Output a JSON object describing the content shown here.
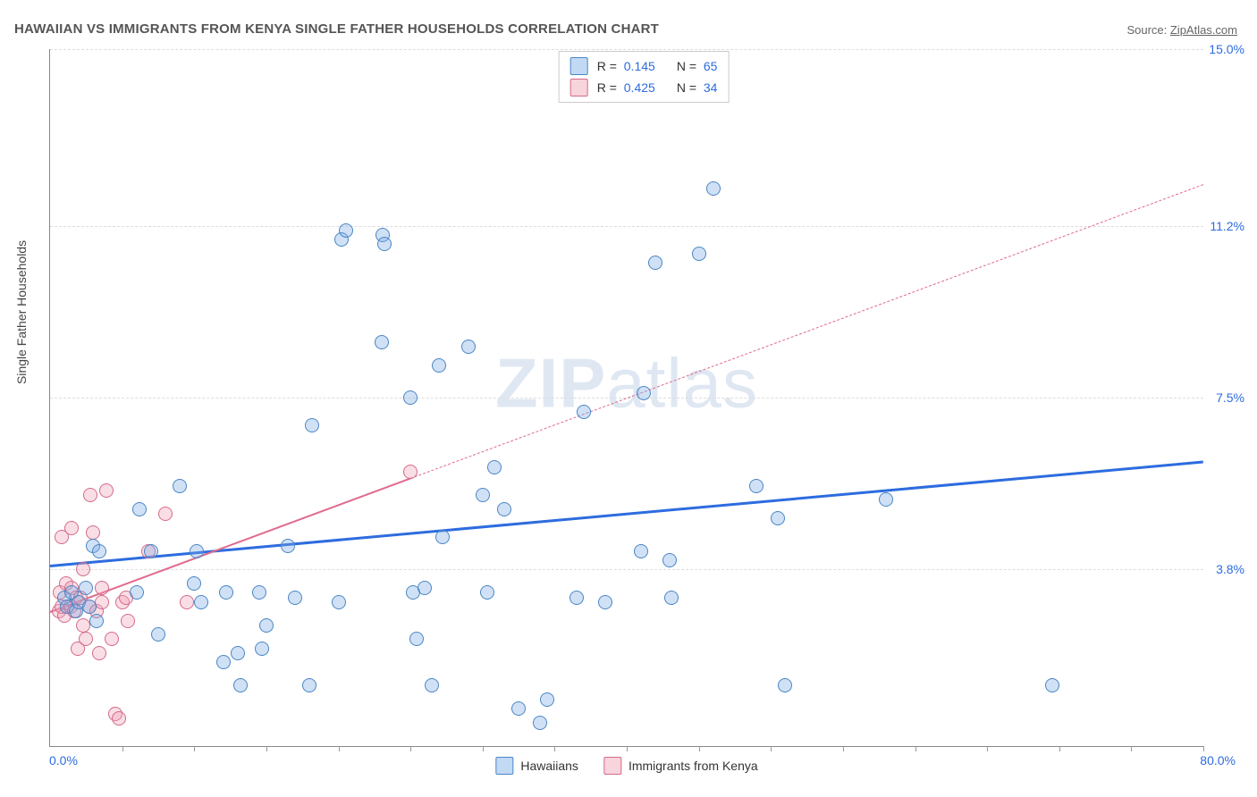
{
  "title": "HAWAIIAN VS IMMIGRANTS FROM KENYA SINGLE FATHER HOUSEHOLDS CORRELATION CHART",
  "source_prefix": "Source: ",
  "source_link": "ZipAtlas.com",
  "y_axis_label": "Single Father Households",
  "watermark_zip": "ZIP",
  "watermark_atlas": "atlas",
  "chart": {
    "type": "scatter",
    "x_range": [
      0,
      80
    ],
    "y_range": [
      0,
      15
    ],
    "y_ticks": [
      3.8,
      7.5,
      11.2,
      15.0
    ],
    "y_tick_labels": [
      "3.8%",
      "7.5%",
      "11.2%",
      "15.0%"
    ],
    "x_minor_ticks_count": 16,
    "x_left_label": "0.0%",
    "x_right_label": "80.0%",
    "background_color": "#ffffff",
    "grid_color": "#dddddd",
    "series": {
      "hawaiians": {
        "label": "Hawaiians",
        "color_fill": "rgba(120,170,230,0.35)",
        "color_border": "#4a86c4",
        "marker_radius_px": 7,
        "regression": {
          "slope": 0.028,
          "intercept": 3.9,
          "solid_until_x": 80,
          "line_color": "#2d6cdf",
          "line_width": 3
        },
        "points": [
          [
            1.0,
            3.2
          ],
          [
            1.2,
            3.0
          ],
          [
            1.5,
            3.3
          ],
          [
            1.8,
            2.9
          ],
          [
            2.0,
            3.1
          ],
          [
            2.5,
            3.4
          ],
          [
            2.7,
            3.0
          ],
          [
            3.0,
            4.3
          ],
          [
            3.2,
            2.7
          ],
          [
            3.4,
            4.2
          ],
          [
            6.0,
            3.3
          ],
          [
            6.2,
            5.1
          ],
          [
            7.0,
            4.2
          ],
          [
            7.5,
            2.4
          ],
          [
            9.0,
            5.6
          ],
          [
            10.0,
            3.5
          ],
          [
            10.2,
            4.2
          ],
          [
            10.5,
            3.1
          ],
          [
            12.0,
            1.8
          ],
          [
            12.2,
            3.3
          ],
          [
            13.0,
            2.0
          ],
          [
            13.2,
            1.3
          ],
          [
            14.5,
            3.3
          ],
          [
            14.7,
            2.1
          ],
          [
            15.0,
            2.6
          ],
          [
            16.5,
            4.3
          ],
          [
            17.0,
            3.2
          ],
          [
            18.0,
            1.3
          ],
          [
            18.2,
            6.9
          ],
          [
            20.0,
            3.1
          ],
          [
            20.2,
            10.9
          ],
          [
            20.5,
            11.1
          ],
          [
            23.0,
            8.7
          ],
          [
            23.1,
            11.0
          ],
          [
            23.2,
            10.8
          ],
          [
            25.0,
            7.5
          ],
          [
            25.2,
            3.3
          ],
          [
            25.4,
            2.3
          ],
          [
            26.0,
            3.4
          ],
          [
            26.5,
            1.3
          ],
          [
            27.0,
            8.2
          ],
          [
            27.2,
            4.5
          ],
          [
            29.0,
            8.6
          ],
          [
            30.0,
            5.4
          ],
          [
            30.3,
            3.3
          ],
          [
            30.8,
            6.0
          ],
          [
            31.5,
            5.1
          ],
          [
            32.5,
            0.8
          ],
          [
            34.0,
            0.5
          ],
          [
            34.5,
            1.0
          ],
          [
            36.5,
            3.2
          ],
          [
            37.0,
            7.2
          ],
          [
            38.5,
            3.1
          ],
          [
            41.0,
            4.2
          ],
          [
            41.2,
            7.6
          ],
          [
            42.0,
            10.4
          ],
          [
            43.0,
            4.0
          ],
          [
            43.1,
            3.2
          ],
          [
            45.0,
            10.6
          ],
          [
            46.0,
            12.0
          ],
          [
            49.0,
            5.6
          ],
          [
            50.5,
            4.9
          ],
          [
            51.0,
            1.3
          ],
          [
            58.0,
            5.3
          ],
          [
            69.5,
            1.3
          ]
        ]
      },
      "kenya": {
        "label": "Immigrants from Kenya",
        "color_fill": "rgba(240,160,180,0.35)",
        "color_border": "#d46a8a",
        "marker_radius_px": 7,
        "regression": {
          "slope": 0.115,
          "intercept": 2.9,
          "solid_until_x": 25,
          "line_color": "#e06a8c",
          "line_width": 2.5,
          "dash_after": true
        },
        "points": [
          [
            0.6,
            2.9
          ],
          [
            0.7,
            3.3
          ],
          [
            0.8,
            3.0
          ],
          [
            0.8,
            4.5
          ],
          [
            1.0,
            2.8
          ],
          [
            1.1,
            3.5
          ],
          [
            1.4,
            3.0
          ],
          [
            1.5,
            3.4
          ],
          [
            1.5,
            4.7
          ],
          [
            1.7,
            2.9
          ],
          [
            1.8,
            3.2
          ],
          [
            1.9,
            2.1
          ],
          [
            2.1,
            3.2
          ],
          [
            2.3,
            2.6
          ],
          [
            2.3,
            3.8
          ],
          [
            2.5,
            2.3
          ],
          [
            2.7,
            3.0
          ],
          [
            2.8,
            5.4
          ],
          [
            3.0,
            4.6
          ],
          [
            3.2,
            2.9
          ],
          [
            3.4,
            2.0
          ],
          [
            3.6,
            3.4
          ],
          [
            3.6,
            3.1
          ],
          [
            3.9,
            5.5
          ],
          [
            4.3,
            2.3
          ],
          [
            4.5,
            0.7
          ],
          [
            4.8,
            0.6
          ],
          [
            5.0,
            3.1
          ],
          [
            5.3,
            3.2
          ],
          [
            5.4,
            2.7
          ],
          [
            6.8,
            4.2
          ],
          [
            8.0,
            5.0
          ],
          [
            9.5,
            3.1
          ],
          [
            25.0,
            5.9
          ]
        ]
      }
    },
    "stats": [
      {
        "series": "hawaiians",
        "r": "0.145",
        "n": "65"
      },
      {
        "series": "kenya",
        "r": "0.425",
        "n": "34"
      }
    ]
  }
}
